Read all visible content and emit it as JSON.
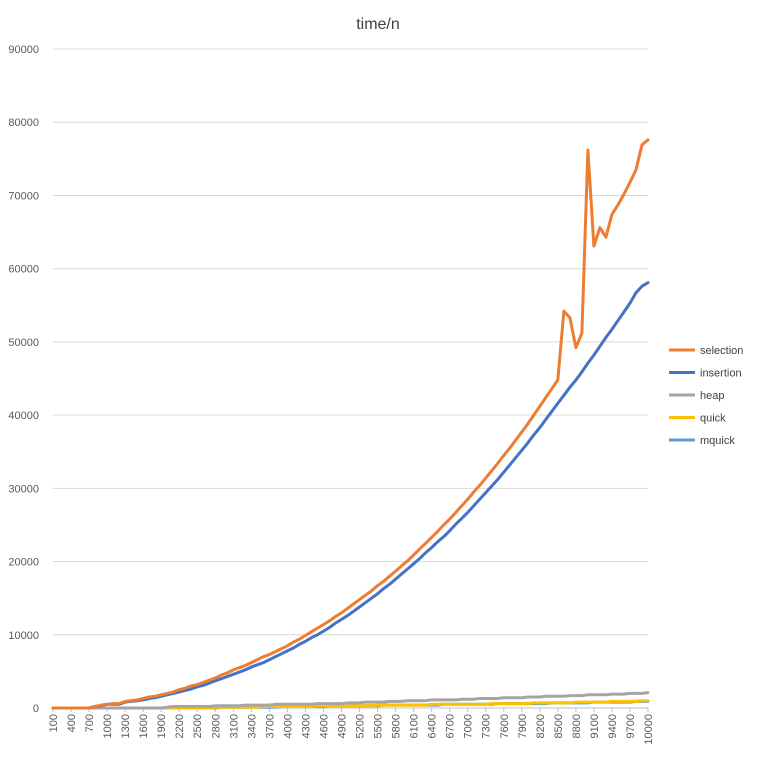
{
  "chart_data": {
    "type": "line",
    "title": "time/n",
    "xlabel": "",
    "ylabel": "",
    "ylim": [
      0,
      90000
    ],
    "y_ticks": [
      "0",
      "10000",
      "20000",
      "30000",
      "40000",
      "50000",
      "60000",
      "70000",
      "80000",
      "90000"
    ],
    "x": [
      100,
      200,
      300,
      400,
      500,
      600,
      700,
      800,
      900,
      1000,
      1100,
      1200,
      1300,
      1400,
      1500,
      1600,
      1700,
      1800,
      1900,
      2000,
      2100,
      2200,
      2300,
      2400,
      2500,
      2600,
      2700,
      2800,
      2900,
      3000,
      3100,
      3200,
      3300,
      3400,
      3500,
      3600,
      3700,
      3800,
      3900,
      4000,
      4100,
      4200,
      4300,
      4400,
      4500,
      4600,
      4700,
      4800,
      4900,
      5000,
      5100,
      5200,
      5300,
      5400,
      5500,
      5600,
      5700,
      5800,
      5900,
      6000,
      6100,
      6200,
      6300,
      6400,
      6500,
      6600,
      6700,
      6800,
      6900,
      7000,
      7100,
      7200,
      7300,
      7400,
      7500,
      7600,
      7700,
      7800,
      7900,
      8000,
      8100,
      8200,
      8300,
      8400,
      8500,
      8600,
      8700,
      8800,
      8900,
      9000,
      9100,
      9200,
      9300,
      9400,
      9500,
      9600,
      9700,
      9800,
      9900,
      10000
    ],
    "x_tick_labels": [
      "100",
      "400",
      "700",
      "1000",
      "1300",
      "1600",
      "1900",
      "2200",
      "2500",
      "2800",
      "3100",
      "3400",
      "3700",
      "4000",
      "4300",
      "4600",
      "4900",
      "5200",
      "5500",
      "5800",
      "6100",
      "6400",
      "6700",
      "7000",
      "7300",
      "7600",
      "7900",
      "8200",
      "8500",
      "8800",
      "9100",
      "9400",
      "9700",
      "10000"
    ],
    "legend_position": "right",
    "grid": true,
    "series": [
      {
        "name": "selection",
        "color": "#ED7D31",
        "values": [
          0,
          0,
          0,
          0,
          0,
          0,
          0,
          200,
          400,
          500,
          600,
          600,
          900,
          1000,
          1100,
          1300,
          1500,
          1600,
          1800,
          2000,
          2200,
          2500,
          2700,
          3000,
          3200,
          3500,
          3800,
          4100,
          4500,
          4800,
          5200,
          5500,
          5800,
          6200,
          6600,
          7000,
          7300,
          7700,
          8100,
          8500,
          9000,
          9400,
          9900,
          10400,
          10900,
          11400,
          11900,
          12500,
          13000,
          13600,
          14200,
          14800,
          15400,
          16000,
          16700,
          17300,
          18000,
          18700,
          19400,
          20100,
          20900,
          21700,
          22500,
          23300,
          24100,
          25000,
          25800,
          26700,
          27600,
          28500,
          29500,
          30400,
          31400,
          32400,
          33400,
          34500,
          35500,
          36600,
          37700,
          38800,
          40000,
          41200,
          42400,
          43600,
          44800,
          54200,
          53300,
          49200,
          51200,
          76200,
          63100,
          65600,
          64300,
          67400,
          68700,
          70200,
          71800,
          73500,
          76900,
          77600
        ]
      },
      {
        "name": "insertion",
        "color": "#4472C4",
        "values": [
          0,
          0,
          0,
          0,
          0,
          0,
          0,
          200,
          300,
          500,
          500,
          500,
          800,
          900,
          1000,
          1100,
          1300,
          1400,
          1600,
          1800,
          2000,
          2200,
          2400,
          2600,
          2900,
          3100,
          3400,
          3700,
          4000,
          4300,
          4600,
          4900,
          5200,
          5600,
          5900,
          6200,
          6600,
          7000,
          7400,
          7800,
          8200,
          8700,
          9100,
          9600,
          10000,
          10500,
          11000,
          11600,
          12100,
          12600,
          13200,
          13800,
          14400,
          15000,
          15600,
          16300,
          16900,
          17600,
          18300,
          19000,
          19700,
          20400,
          21200,
          21900,
          22700,
          23400,
          24200,
          25100,
          25900,
          26700,
          27600,
          28500,
          29400,
          30300,
          31200,
          32200,
          33200,
          34200,
          35200,
          36200,
          37300,
          38300,
          39400,
          40500,
          41600,
          42700,
          43800,
          44800,
          45900,
          47100,
          48200,
          49400,
          50600,
          51700,
          52900,
          54100,
          55300,
          56700,
          57600,
          58100
        ]
      },
      {
        "name": "heap",
        "color": "#A5A5A5",
        "values": [
          0,
          0,
          0,
          0,
          0,
          0,
          0,
          0,
          0,
          0,
          0,
          0,
          0,
          0,
          0,
          0,
          0,
          0,
          0,
          100,
          200,
          200,
          200,
          200,
          200,
          200,
          200,
          300,
          300,
          300,
          300,
          300,
          400,
          400,
          400,
          400,
          400,
          500,
          500,
          500,
          500,
          500,
          500,
          500,
          600,
          600,
          600,
          600,
          600,
          700,
          700,
          700,
          800,
          800,
          800,
          800,
          900,
          900,
          900,
          1000,
          1000,
          1000,
          1000,
          1100,
          1100,
          1100,
          1100,
          1100,
          1200,
          1200,
          1200,
          1300,
          1300,
          1300,
          1300,
          1400,
          1400,
          1400,
          1400,
          1500,
          1500,
          1500,
          1600,
          1600,
          1600,
          1600,
          1700,
          1700,
          1700,
          1800,
          1800,
          1800,
          1800,
          1900,
          1900,
          1900,
          2000,
          2000,
          2000,
          2100
        ]
      },
      {
        "name": "quick",
        "color": "#FFC000",
        "values": [
          0,
          0,
          0,
          0,
          0,
          0,
          0,
          0,
          0,
          0,
          0,
          0,
          0,
          0,
          0,
          0,
          0,
          0,
          0,
          0,
          0,
          0,
          0,
          0,
          0,
          0,
          0,
          100,
          100,
          100,
          100,
          100,
          100,
          100,
          100,
          200,
          200,
          200,
          200,
          200,
          200,
          200,
          200,
          200,
          300,
          300,
          300,
          300,
          300,
          300,
          300,
          300,
          300,
          300,
          400,
          400,
          400,
          400,
          400,
          400,
          400,
          400,
          400,
          500,
          500,
          500,
          500,
          500,
          500,
          500,
          500,
          500,
          500,
          600,
          600,
          600,
          600,
          600,
          600,
          600,
          700,
          700,
          700,
          700,
          700,
          700,
          700,
          800,
          800,
          800,
          800,
          800,
          800,
          900,
          900,
          900,
          900,
          900,
          1000,
          1000
        ]
      },
      {
        "name": "mquick",
        "color": "#5B9BD5",
        "values": [
          0,
          0,
          0,
          0,
          0,
          0,
          0,
          0,
          0,
          0,
          0,
          0,
          0,
          0,
          0,
          0,
          0,
          0,
          0,
          0,
          0,
          0,
          0,
          0,
          0,
          0,
          0,
          0,
          100,
          100,
          100,
          100,
          100,
          100,
          100,
          100,
          100,
          100,
          200,
          200,
          200,
          200,
          200,
          200,
          200,
          200,
          300,
          300,
          300,
          300,
          300,
          300,
          300,
          300,
          300,
          400,
          400,
          400,
          400,
          400,
          400,
          400,
          400,
          400,
          400,
          500,
          500,
          500,
          500,
          500,
          500,
          500,
          500,
          500,
          600,
          600,
          600,
          600,
          600,
          600,
          600,
          600,
          600,
          700,
          700,
          700,
          700,
          700,
          700,
          700,
          800,
          800,
          800,
          800,
          800,
          800,
          800,
          900,
          900,
          900
        ]
      }
    ]
  }
}
